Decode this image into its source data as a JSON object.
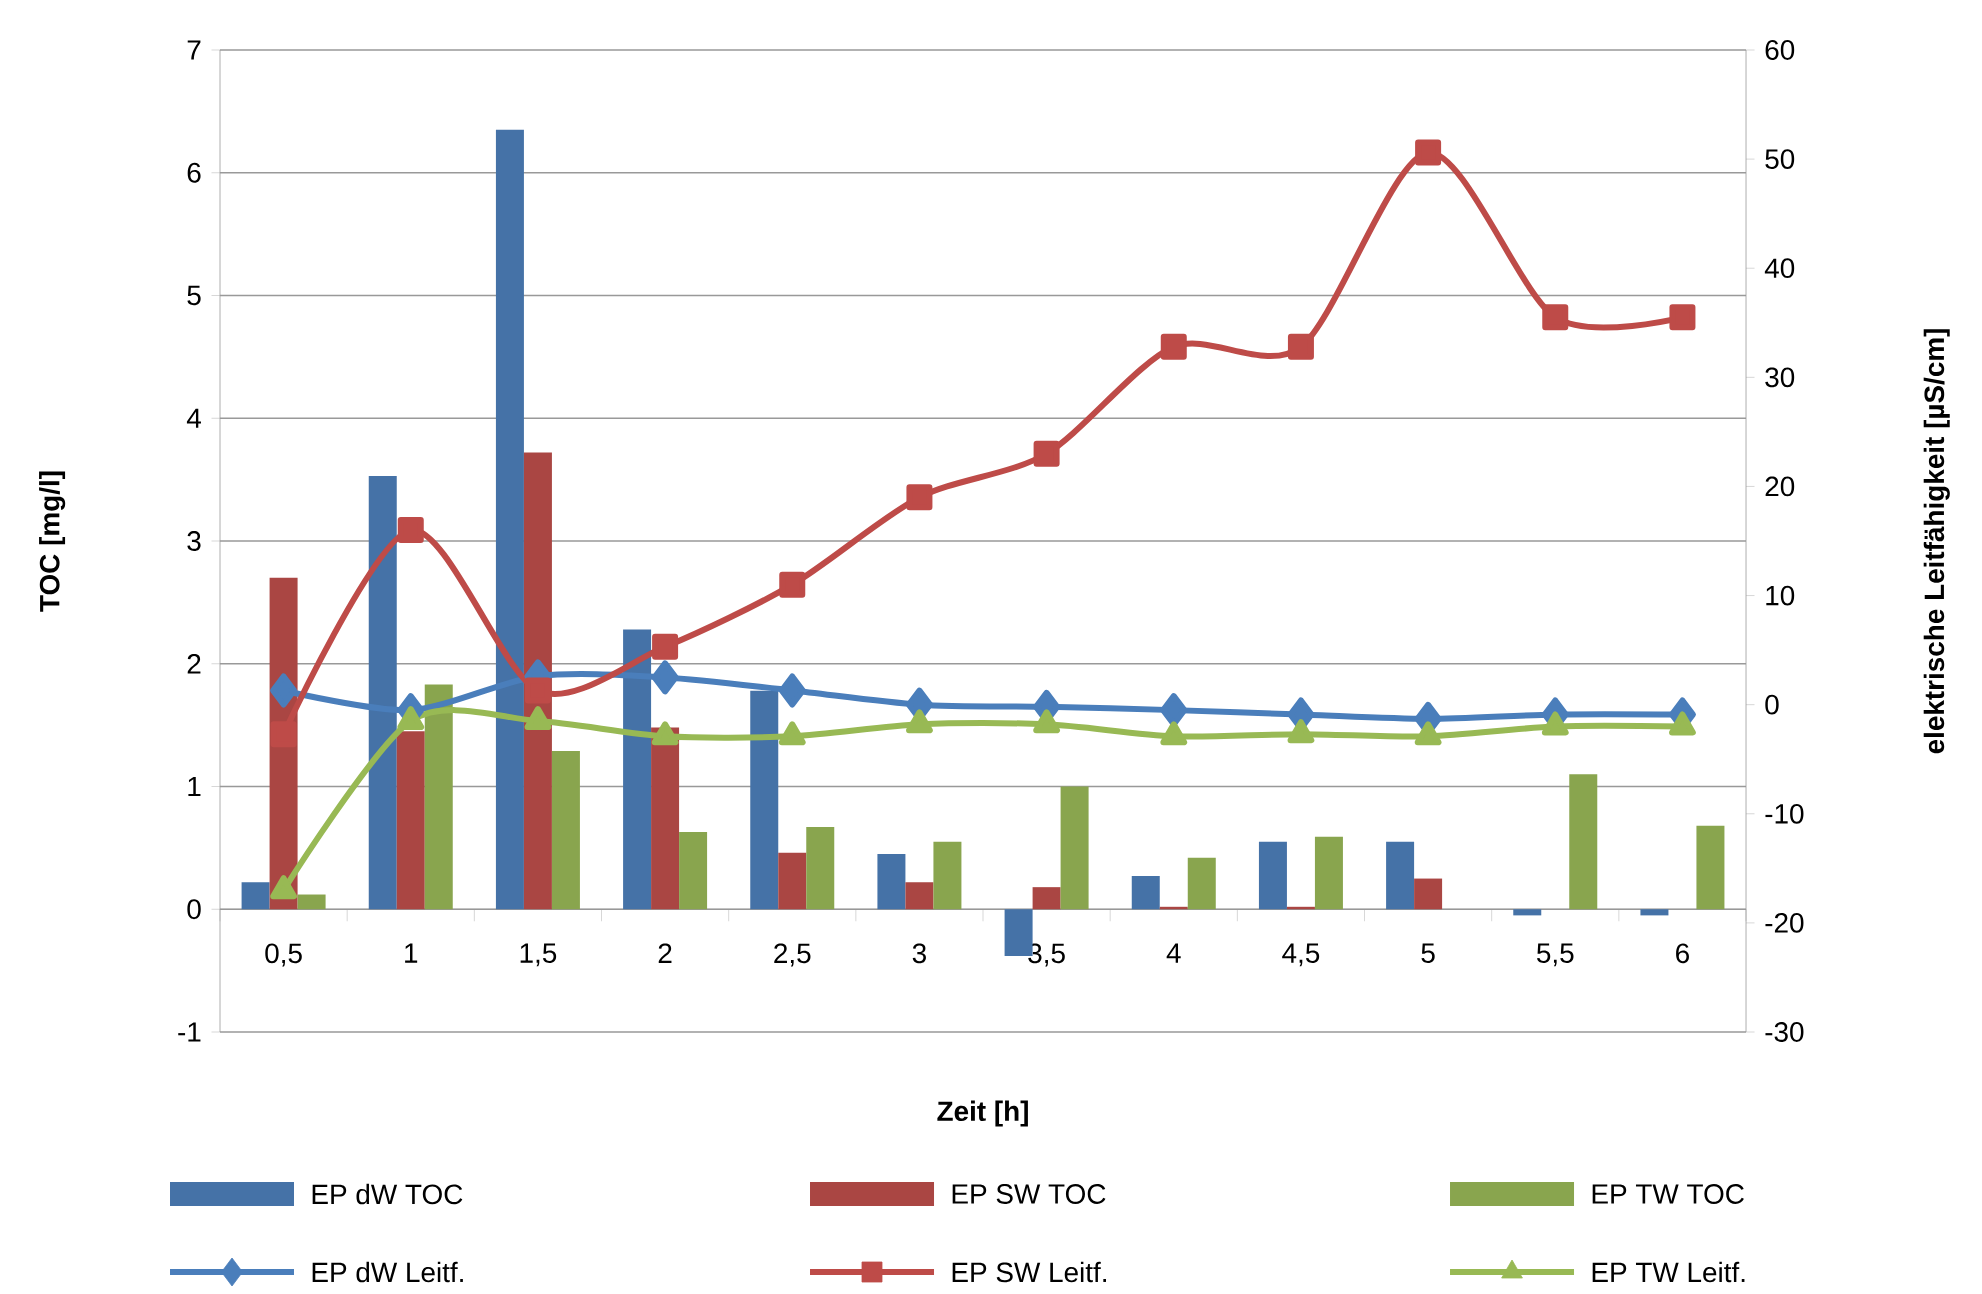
{
  "chart_data": {
    "type": "bar",
    "xlabel": "Zeit [h]",
    "ylabel": "TOC [mg/l]",
    "y2label": "elektrische Leitfähigkeit [µS/cm]",
    "categories": [
      "0,5",
      "1",
      "1,5",
      "2",
      "2,5",
      "3",
      "3,5",
      "4",
      "4,5",
      "5",
      "5,5",
      "6"
    ],
    "ylim": [
      -1,
      7
    ],
    "yticks": [
      -1,
      0,
      1,
      2,
      3,
      4,
      5,
      6,
      7
    ],
    "y2lim": [
      -30,
      60
    ],
    "y2ticks": [
      -30,
      -20,
      -10,
      0,
      10,
      20,
      30,
      40,
      50,
      60
    ],
    "grid": "y",
    "legend": "bottom",
    "series": [
      {
        "name": "EP dW TOC",
        "color": "#4572a7",
        "values": [
          0.22,
          3.53,
          6.35,
          2.28,
          1.78,
          0.45,
          -0.38,
          0.27,
          0.55,
          0.55,
          -0.05,
          -0.05
        ]
      },
      {
        "name": "EP SW TOC",
        "color": "#aa4643",
        "values": [
          2.7,
          1.45,
          3.72,
          1.48,
          0.46,
          0.22,
          0.18,
          0.02,
          0.02,
          0.25,
          0,
          0
        ]
      },
      {
        "name": "EP TW TOC",
        "color": "#89a54e",
        "values": [
          0.12,
          1.83,
          1.29,
          0.63,
          0.67,
          0.55,
          1.0,
          0.42,
          0.59,
          0,
          1.1,
          0.68
        ]
      },
      {
        "name": "EP dW Leitf.",
        "type": "line",
        "axis": "y2",
        "marker": "diamond",
        "color": "#4a7ebb",
        "values": [
          1.3,
          -0.5,
          2.6,
          2.5,
          1.3,
          0,
          -0.2,
          -0.5,
          -0.9,
          -1.3,
          -0.9,
          -0.9
        ]
      },
      {
        "name": "EP SW Leitf.",
        "type": "line",
        "axis": "y2",
        "marker": "square",
        "color": "#be4b48",
        "values": [
          -2.7,
          16,
          1.3,
          5.3,
          11,
          19,
          23,
          32.8,
          32.8,
          50.6,
          35.5,
          35.5
        ]
      },
      {
        "name": "EP TW Leitf.",
        "type": "line",
        "axis": "y2",
        "marker": "triangle",
        "color": "#98b954",
        "values": [
          -17,
          -1.5,
          -1.5,
          -2.9,
          -2.9,
          -1.8,
          -1.8,
          -2.9,
          -2.7,
          -2.9,
          -2,
          -2
        ]
      }
    ]
  }
}
